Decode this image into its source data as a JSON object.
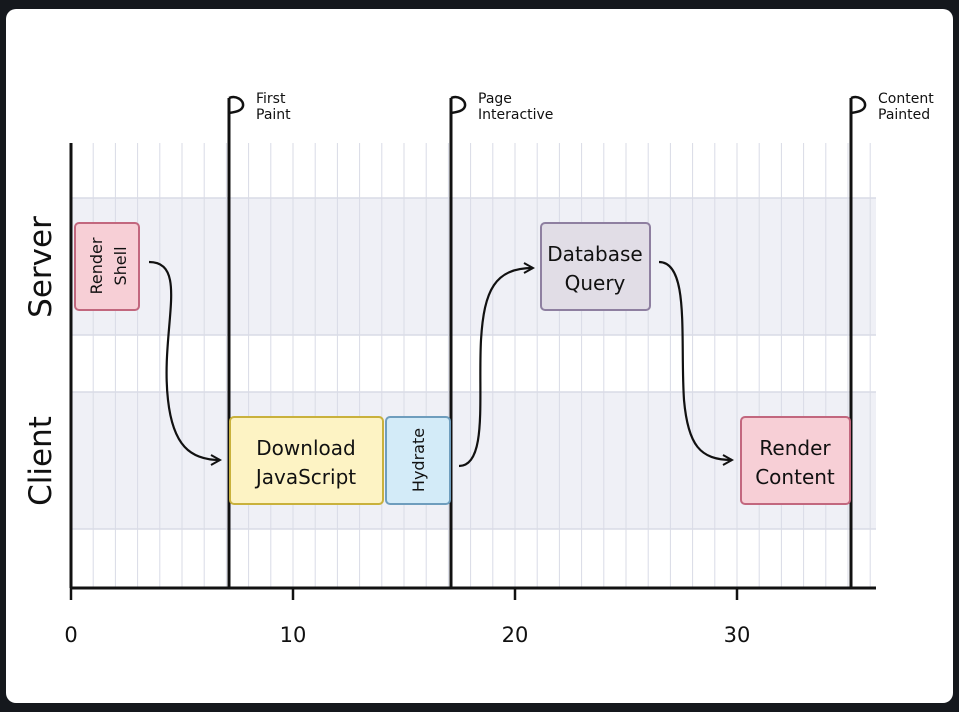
{
  "lanes": {
    "server": "Server",
    "client": "Client"
  },
  "milestones": [
    {
      "lines": [
        "First",
        "Paint"
      ],
      "at": 7
    },
    {
      "lines": [
        "Page",
        "Interactive"
      ],
      "at": 17
    },
    {
      "lines": [
        "Content",
        "Painted"
      ],
      "at": 35
    }
  ],
  "axis": {
    "ticks": [
      "0",
      "10",
      "20",
      "30"
    ]
  },
  "tasks": {
    "render_shell": {
      "lines": [
        "Render",
        "Shell"
      ],
      "lane": "Server",
      "start": 0,
      "end": 3,
      "color": "#f7cfd6",
      "border": "#c2677e"
    },
    "download_js": {
      "lines": [
        "Download",
        "JavaScript"
      ],
      "lane": "Client",
      "start": 7,
      "end": 14,
      "color": "#fdf3c4",
      "border": "#c9b13c"
    },
    "hydrate": {
      "label": "Hydrate",
      "lane": "Client",
      "start": 14,
      "end": 17,
      "color": "#d3ebf8",
      "border": "#6e9dbd"
    },
    "database_query": {
      "lines": [
        "Database",
        "Query"
      ],
      "lane": "Server",
      "start": 21,
      "end": 26,
      "color": "#e1dde6",
      "border": "#8e7fa0"
    },
    "render_content": {
      "lines": [
        "Render",
        "Content"
      ],
      "lane": "Client",
      "start": 30,
      "end": 35,
      "color": "#f7cfd6",
      "border": "#c2677e"
    }
  },
  "colors": {
    "lane_band": "#eff0f6",
    "grid": "#d9dbe6",
    "ink": "#111111"
  }
}
